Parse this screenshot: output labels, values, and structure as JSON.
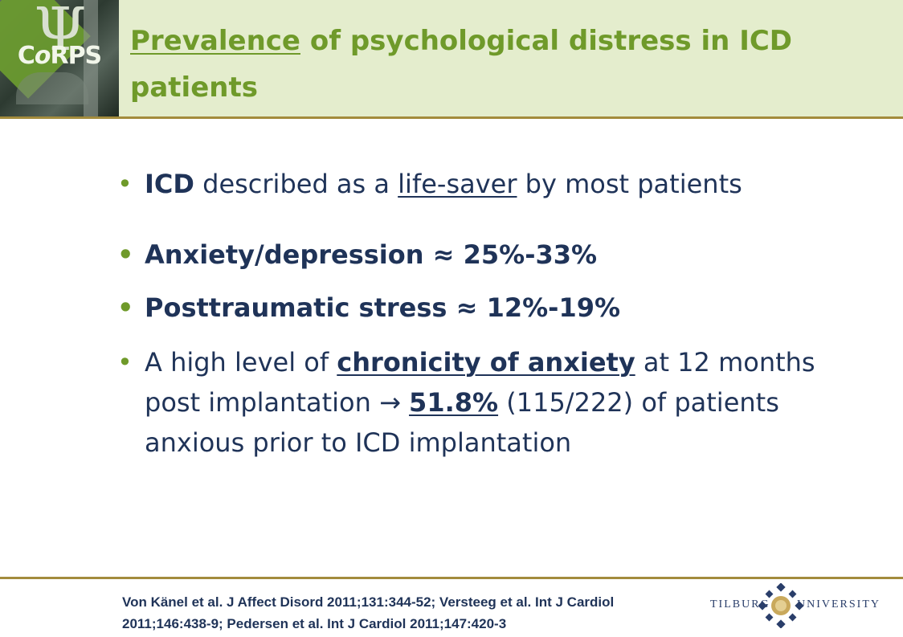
{
  "logo": {
    "symbol": "Ψ",
    "text_prefix": "C",
    "text_italic": "o",
    "text_suffix": "RPS"
  },
  "title": {
    "underlined": "Prevalence",
    "rest": " of psychological distress in ICD patients"
  },
  "bullets": {
    "marker": "•",
    "b1": {
      "bold": "ICD",
      "t1": " described as a ",
      "underlined": "life-saver",
      "t2": " by most patients"
    },
    "b2": {
      "text": "Anxiety/depression ≈ 25%-33%"
    },
    "b3": {
      "text": "Posttraumatic stress ≈ 12%-19%"
    },
    "b4": {
      "t1": "A high level of ",
      "underlined1": "chronicity of anxiety",
      "t2": " at 12 months post implantation → ",
      "underlined2": "51.8%",
      "t3": " (115/222) of patients anxious prior to ICD implantation"
    }
  },
  "footer": {
    "reference": "Von Känel et al. J Affect Disord 2011;131:344-52; Versteeg et al. Int J Cardiol 2011;146:438-9; Pedersen et al. Int J Cardiol 2011;147:420-3",
    "university_word1": "TILBURG",
    "university_word2": "UNIVERSITY"
  },
  "colors": {
    "header_bg": "#e4edcd",
    "title_green": "#6f9a2a",
    "rule_gold": "#a38b3c",
    "body_navy": "#1f3358"
  }
}
